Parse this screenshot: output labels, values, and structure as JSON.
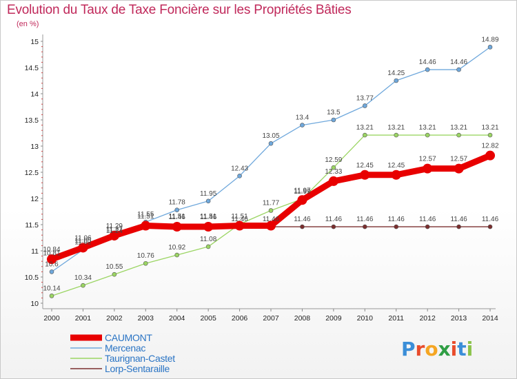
{
  "title": "Evolution du Taux de Taxe Foncière sur les Propriétés Bâties",
  "subtitle": "(en %)",
  "logo": {
    "letters": [
      "P",
      "r",
      "o",
      "x",
      "i",
      "t",
      "i"
    ],
    "colors": [
      "#3b8ed8",
      "#e84c2c",
      "#f5a623",
      "#2f9e44",
      "#e84c2c",
      "#3b8ed8",
      "#8bc34a"
    ]
  },
  "chart_data": {
    "type": "line",
    "x": [
      2000,
      2001,
      2002,
      2003,
      2004,
      2005,
      2006,
      2007,
      2008,
      2009,
      2010,
      2011,
      2012,
      2013,
      2014
    ],
    "ylim": [
      10,
      15
    ],
    "yticks": [
      10,
      10.5,
      11,
      11.5,
      12,
      12.5,
      13,
      13.5,
      14,
      14.5,
      15
    ],
    "legend_position": "bottom-left",
    "series": [
      {
        "name": "CAUMONT",
        "color": "#e80000",
        "values": [
          10.84,
          11.06,
          11.29,
          11.48,
          11.46,
          11.46,
          11.48,
          11.48,
          11.97,
          12.33,
          12.45,
          12.45,
          12.57,
          12.57,
          12.82
        ],
        "labels": [
          "10.84",
          "11.06",
          "11.29",
          "",
          "11.46",
          "11.46",
          "",
          "",
          "11.97",
          "12.33",
          "12.45",
          "12.45",
          "12.57",
          "12.57",
          "12.82"
        ]
      },
      {
        "name": "Mercenac",
        "color": "#6fa8dc",
        "values": [
          10.6,
          11.02,
          11.24,
          11.55,
          11.78,
          11.95,
          12.43,
          13.05,
          13.4,
          13.5,
          13.77,
          14.25,
          14.46,
          14.46,
          14.89
        ],
        "labels": [
          "10.6",
          "11.02",
          "11.24",
          "11.55",
          "11.78",
          "11.95",
          "12.43",
          "13.05",
          "13.4",
          "13.5",
          "13.77",
          "14.25",
          "14.46",
          "14.46",
          "14.89"
        ]
      },
      {
        "name": "Taurignan-Castet",
        "color": "#9bd563",
        "values": [
          10.14,
          10.34,
          10.55,
          10.76,
          10.92,
          11.08,
          11.51,
          11.77,
          11.99,
          12.59,
          13.21,
          13.21,
          13.21,
          13.21,
          13.21
        ],
        "labels": [
          "10.14",
          "10.34",
          "10.55",
          "10.76",
          "10.92",
          "11.08",
          "11.51",
          "11.77",
          "11.99",
          "12.59",
          "13.21",
          "13.21",
          "13.21",
          "13.21",
          "13.21"
        ]
      },
      {
        "name": "Lorp-Sentaraille",
        "color": "#7b2e2e",
        "values": [
          10.81,
          11.05,
          11.27,
          11.51,
          11.51,
          11.51,
          11.46,
          11.46,
          11.46,
          11.46,
          11.46,
          11.46,
          11.46,
          11.46,
          11.46
        ],
        "labels": [
          "10.81",
          "11.05",
          "11.27",
          "11.51",
          "11.51",
          "11.51",
          "11.46",
          "11.46",
          "11.46",
          "11.46",
          "11.46",
          "11.46",
          "11.46",
          "11.46",
          "11.46"
        ]
      }
    ]
  }
}
